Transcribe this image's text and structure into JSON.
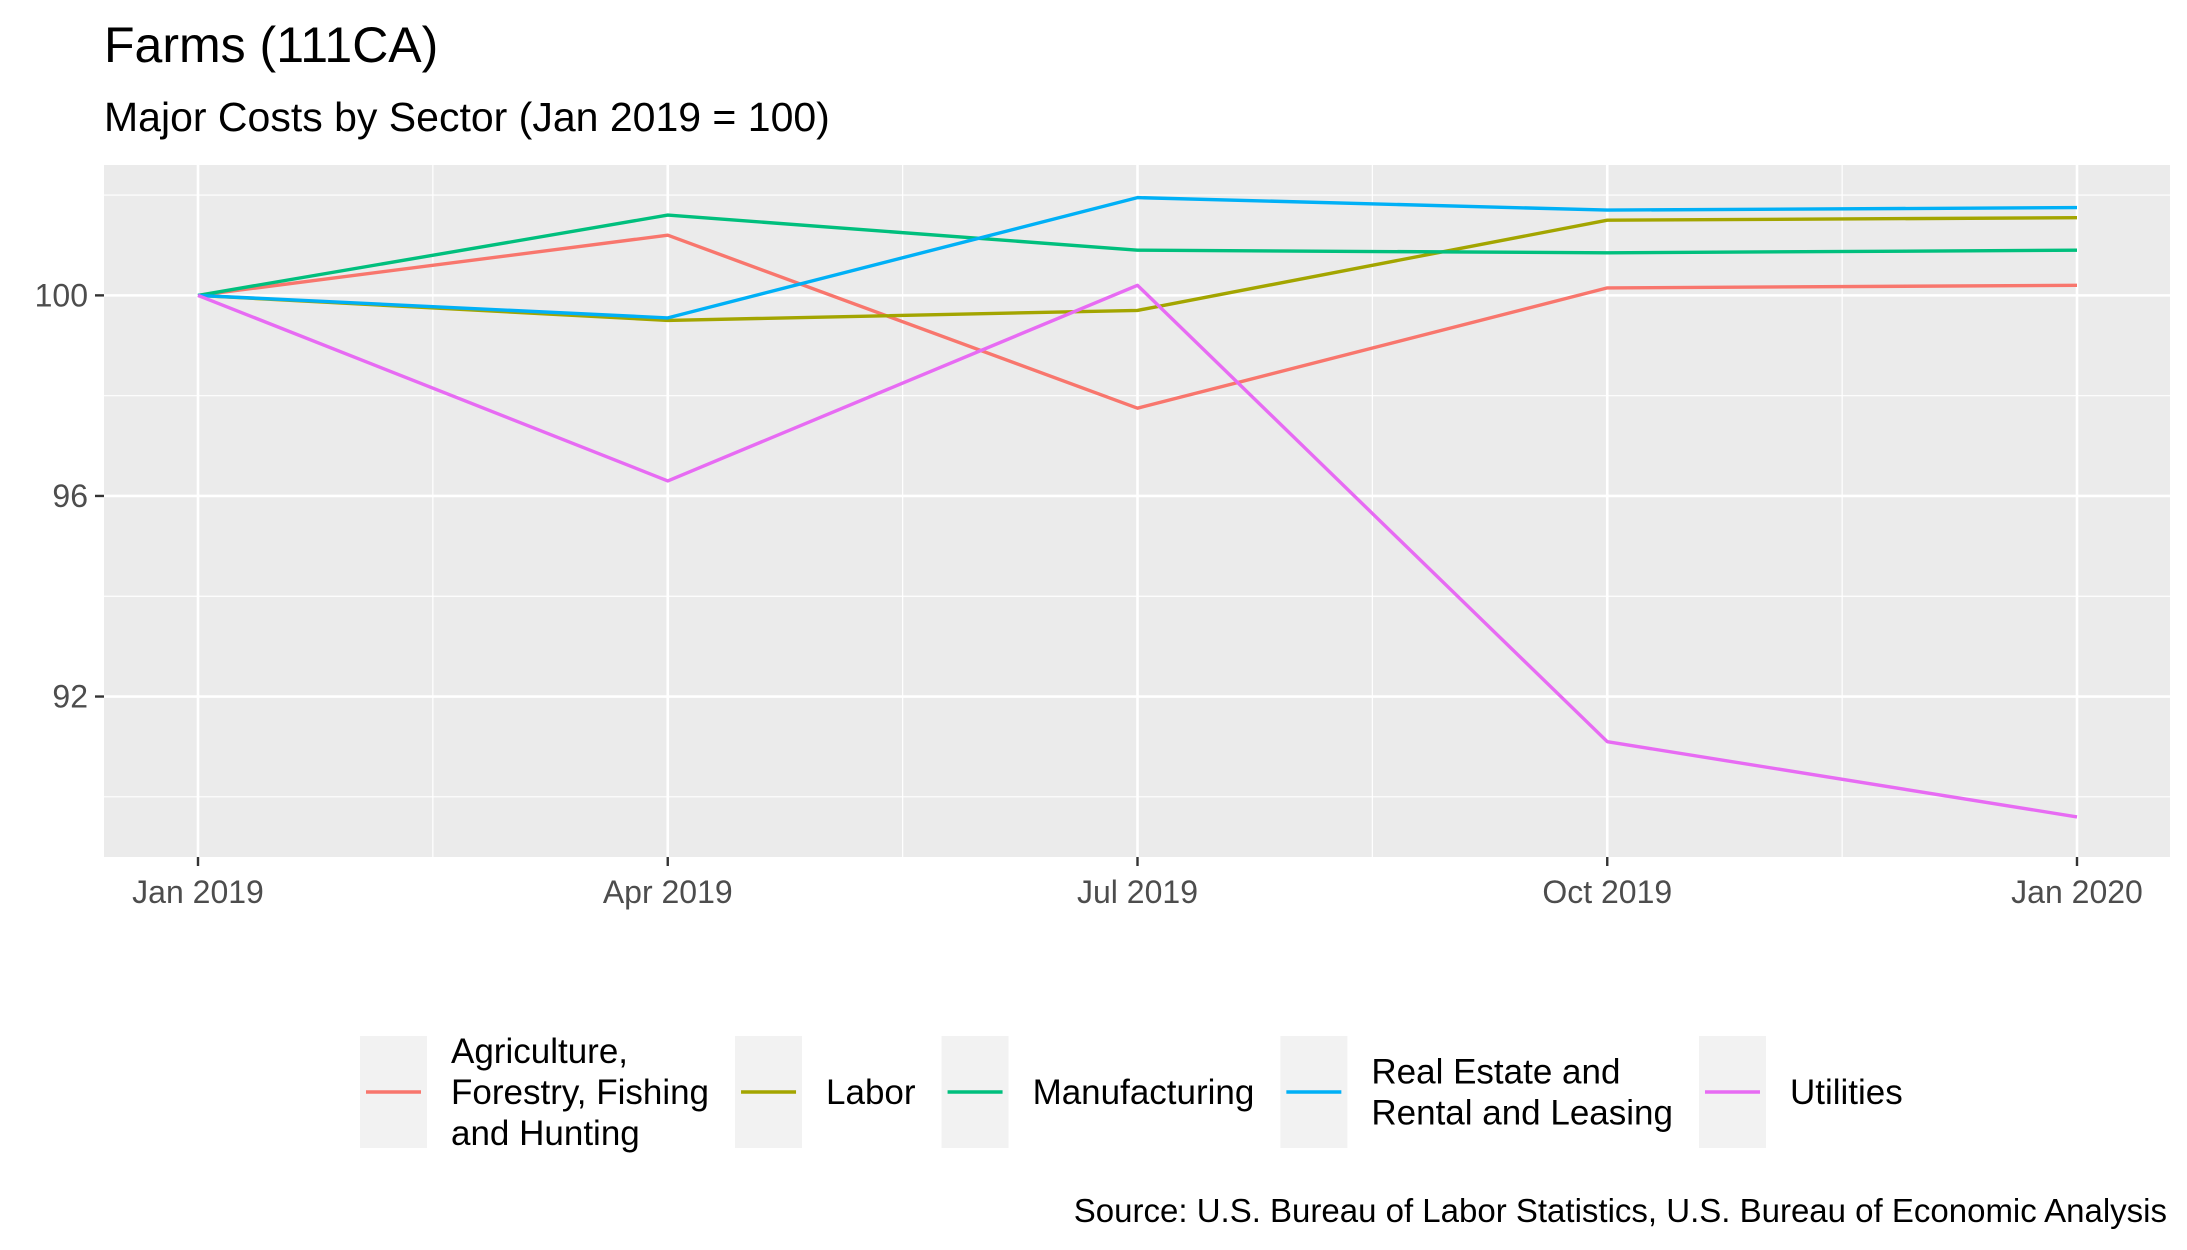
{
  "chart_data": {
    "type": "line",
    "title": "Farms (111CA)",
    "subtitle": "Major Costs by Sector (Jan 2019 = 100)",
    "caption": "Source: U.S. Bureau of Labor Statistics, U.S. Bureau of Economic Analysis",
    "xlabel": "",
    "ylabel": "",
    "x": [
      "Jan 2019",
      "Apr 2019",
      "Jul 2019",
      "Oct 2019",
      "Jan 2020"
    ],
    "x_months": [
      0,
      3,
      6,
      9,
      12
    ],
    "x_tick_labels": [
      "Jan 2019",
      "Apr 2019",
      "Jul 2019",
      "Oct 2019",
      "Jan 2020"
    ],
    "y_ticks": [
      92,
      96,
      100
    ],
    "y_tick_labels": [
      "92",
      "96",
      "100"
    ],
    "ylim": [
      88.8,
      102.6
    ],
    "grid": true,
    "legend_position": "bottom",
    "series": [
      {
        "name": "Agriculture, Forestry, Fishing and Hunting",
        "label_lines": [
          "Agriculture,",
          "Forestry, Fishing",
          "and Hunting"
        ],
        "color": "#F8766D",
        "values": [
          100.0,
          101.2,
          97.75,
          100.15,
          100.2
        ]
      },
      {
        "name": "Labor",
        "label_lines": [
          "Labor"
        ],
        "color": "#A3A500",
        "values": [
          100.0,
          99.5,
          99.7,
          101.5,
          101.55
        ]
      },
      {
        "name": "Manufacturing",
        "label_lines": [
          "Manufacturing"
        ],
        "color": "#00BF7D",
        "values": [
          100.0,
          101.6,
          100.9,
          100.85,
          100.9
        ]
      },
      {
        "name": "Real Estate and Rental and Leasing",
        "label_lines": [
          "Real Estate and",
          "Rental and Leasing"
        ],
        "color": "#00B0F6",
        "values": [
          100.0,
          99.55,
          101.95,
          101.7,
          101.75
        ]
      },
      {
        "name": "Utilities",
        "label_lines": [
          "Utilities"
        ],
        "color": "#E76BF3",
        "values": [
          100.0,
          96.3,
          100.2,
          91.1,
          89.6
        ]
      }
    ]
  }
}
